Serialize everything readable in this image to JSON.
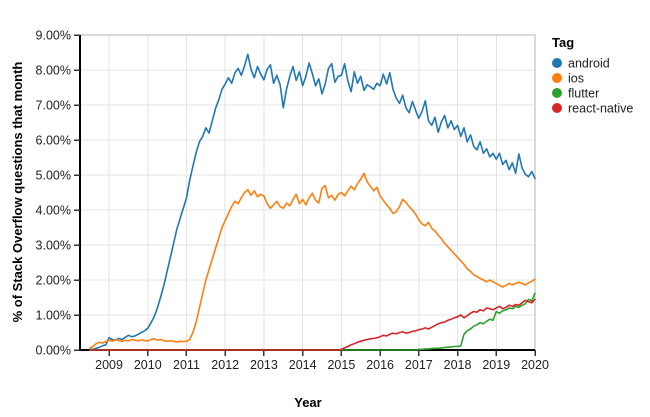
{
  "chart_data": {
    "type": "line",
    "title": "",
    "xlabel": "Year",
    "ylabel": "% of Stack Overflow questions that month",
    "legend_title": "Tag",
    "legend_position": "right",
    "grid": true,
    "xlim": [
      2008.25,
      2020.0
    ],
    "ylim": [
      0,
      9
    ],
    "x_ticks": [
      2009,
      2010,
      2011,
      2012,
      2013,
      2014,
      2015,
      2016,
      2017,
      2018,
      2019,
      2020
    ],
    "y_ticks": [
      0,
      1,
      2,
      3,
      4,
      5,
      6,
      7,
      8,
      9
    ],
    "y_tick_labels": [
      "0.00%",
      "1.00%",
      "2.00%",
      "3.00%",
      "4.00%",
      "5.00%",
      "6.00%",
      "7.00%",
      "8.00%",
      "9.00%"
    ],
    "x_start": 2008.5,
    "x_step": 0.0833333,
    "series": [
      {
        "name": "android",
        "color": "#1f77b4",
        "values": [
          0.01,
          0.02,
          0.05,
          0.08,
          0.12,
          0.15,
          0.35,
          0.3,
          0.28,
          0.33,
          0.3,
          0.36,
          0.42,
          0.38,
          0.4,
          0.45,
          0.5,
          0.55,
          0.62,
          0.78,
          0.95,
          1.2,
          1.52,
          1.85,
          2.25,
          2.65,
          3.05,
          3.45,
          3.75,
          4.05,
          4.35,
          4.85,
          5.25,
          5.65,
          5.95,
          6.1,
          6.35,
          6.2,
          6.55,
          6.9,
          7.15,
          7.45,
          7.6,
          7.78,
          7.62,
          7.92,
          8.05,
          7.85,
          8.12,
          8.45,
          8.02,
          7.78,
          8.1,
          7.88,
          7.72,
          8.02,
          8.15,
          7.62,
          7.85,
          7.58,
          6.92,
          7.45,
          7.82,
          8.1,
          7.7,
          7.95,
          7.55,
          7.82,
          8.2,
          7.9,
          7.55,
          7.75,
          7.32,
          7.6,
          8.05,
          8.18,
          7.65,
          7.82,
          7.85,
          8.18,
          7.7,
          7.38,
          7.95,
          7.62,
          7.82,
          7.42,
          7.58,
          7.52,
          7.45,
          7.62,
          7.55,
          7.88,
          7.6,
          7.92,
          7.45,
          7.2,
          7.05,
          7.28,
          6.92,
          6.78,
          7.1,
          6.85,
          6.62,
          6.82,
          7.12,
          6.55,
          6.42,
          6.65,
          6.22,
          6.52,
          6.7,
          6.35,
          6.55,
          6.3,
          6.42,
          6.1,
          6.35,
          5.95,
          6.15,
          5.82,
          5.72,
          5.95,
          5.62,
          5.75,
          5.52,
          5.62,
          5.45,
          5.62,
          5.3,
          5.42,
          5.15,
          5.35,
          5.05,
          5.6,
          5.2,
          5.02,
          4.95,
          5.1,
          4.9
        ]
      },
      {
        "name": "ios",
        "color": "#ff7f0e",
        "values": [
          0.05,
          0.1,
          0.18,
          0.22,
          0.2,
          0.24,
          0.28,
          0.25,
          0.3,
          0.27,
          0.25,
          0.28,
          0.26,
          0.3,
          0.28,
          0.26,
          0.29,
          0.27,
          0.26,
          0.3,
          0.32,
          0.28,
          0.3,
          0.27,
          0.25,
          0.27,
          0.25,
          0.23,
          0.25,
          0.24,
          0.25,
          0.3,
          0.5,
          0.8,
          1.2,
          1.6,
          2.0,
          2.3,
          2.6,
          2.9,
          3.2,
          3.5,
          3.7,
          3.9,
          4.1,
          4.25,
          4.18,
          4.35,
          4.5,
          4.58,
          4.42,
          4.55,
          4.38,
          4.45,
          4.4,
          4.18,
          4.05,
          4.15,
          4.25,
          4.1,
          4.05,
          4.2,
          4.12,
          4.3,
          4.45,
          4.18,
          4.3,
          4.15,
          4.35,
          4.48,
          4.28,
          4.2,
          4.62,
          4.7,
          4.35,
          4.42,
          4.28,
          4.45,
          4.5,
          4.4,
          4.55,
          4.68,
          4.58,
          4.75,
          4.88,
          5.05,
          4.8,
          4.68,
          4.55,
          4.65,
          4.4,
          4.28,
          4.15,
          4.05,
          3.9,
          3.95,
          4.1,
          4.3,
          4.22,
          4.1,
          4.0,
          3.88,
          3.72,
          3.6,
          3.55,
          3.65,
          3.48,
          3.4,
          3.28,
          3.18,
          3.05,
          2.95,
          2.85,
          2.75,
          2.65,
          2.55,
          2.45,
          2.32,
          2.25,
          2.15,
          2.1,
          2.05,
          2.0,
          1.95,
          2.0,
          1.95,
          1.9,
          1.85,
          1.8,
          1.85,
          1.9,
          1.86,
          1.9,
          1.94,
          1.9,
          1.86,
          1.92,
          1.96,
          2.02
        ]
      },
      {
        "name": "flutter",
        "color": "#2ca02c",
        "values": [
          0,
          0,
          0,
          0,
          0,
          0,
          0,
          0,
          0,
          0,
          0,
          0,
          0,
          0,
          0,
          0,
          0,
          0,
          0,
          0,
          0,
          0,
          0,
          0,
          0,
          0,
          0,
          0,
          0,
          0,
          0,
          0,
          0,
          0,
          0,
          0,
          0,
          0,
          0,
          0,
          0,
          0,
          0,
          0,
          0,
          0,
          0,
          0,
          0,
          0,
          0,
          0,
          0,
          0,
          0,
          0,
          0,
          0,
          0,
          0,
          0,
          0,
          0,
          0,
          0,
          0,
          0,
          0,
          0,
          0,
          0,
          0,
          0,
          0,
          0,
          0,
          0,
          0,
          0,
          0,
          0,
          0,
          0,
          0,
          0,
          0,
          0,
          0,
          0,
          0,
          0,
          0,
          0,
          0,
          0,
          0,
          0,
          0,
          0,
          0,
          0,
          0,
          0.02,
          0.02,
          0.03,
          0.03,
          0.04,
          0.05,
          0.05,
          0.06,
          0.07,
          0.08,
          0.09,
          0.1,
          0.1,
          0.12,
          0.45,
          0.55,
          0.6,
          0.68,
          0.72,
          0.78,
          0.75,
          0.82,
          0.88,
          0.85,
          1.1,
          1.05,
          1.12,
          1.15,
          1.2,
          1.18,
          1.25,
          1.22,
          1.28,
          1.32,
          1.45,
          1.4,
          1.62
        ]
      },
      {
        "name": "react-native",
        "color": "#d62728",
        "values": [
          0,
          0,
          0,
          0,
          0,
          0,
          0,
          0,
          0,
          0,
          0,
          0,
          0,
          0,
          0,
          0,
          0,
          0,
          0,
          0,
          0,
          0,
          0,
          0,
          0,
          0,
          0,
          0,
          0,
          0,
          0,
          0,
          0,
          0,
          0,
          0,
          0,
          0,
          0,
          0,
          0,
          0,
          0,
          0,
          0,
          0,
          0,
          0,
          0,
          0,
          0,
          0,
          0,
          0,
          0,
          0,
          0,
          0,
          0,
          0,
          0,
          0,
          0,
          0,
          0,
          0,
          0,
          0,
          0,
          0,
          0,
          0,
          0,
          0,
          0,
          0,
          0,
          0,
          0.02,
          0.06,
          0.1,
          0.15,
          0.18,
          0.22,
          0.25,
          0.28,
          0.3,
          0.32,
          0.33,
          0.35,
          0.38,
          0.42,
          0.4,
          0.45,
          0.48,
          0.46,
          0.5,
          0.52,
          0.48,
          0.5,
          0.53,
          0.55,
          0.58,
          0.6,
          0.63,
          0.6,
          0.65,
          0.7,
          0.75,
          0.78,
          0.8,
          0.85,
          0.88,
          0.92,
          0.95,
          1.0,
          0.92,
          0.98,
          1.05,
          1.1,
          1.08,
          1.15,
          1.12,
          1.2,
          1.18,
          1.15,
          1.2,
          1.25,
          1.18,
          1.22,
          1.28,
          1.25,
          1.3,
          1.28,
          1.35,
          1.42,
          1.38,
          1.35,
          1.45
        ]
      }
    ],
    "style": {
      "grid_color": "#e3e3e3",
      "border_color": "#b5b5b5",
      "axis_color": "#000000",
      "tick_color": "#333333"
    }
  }
}
